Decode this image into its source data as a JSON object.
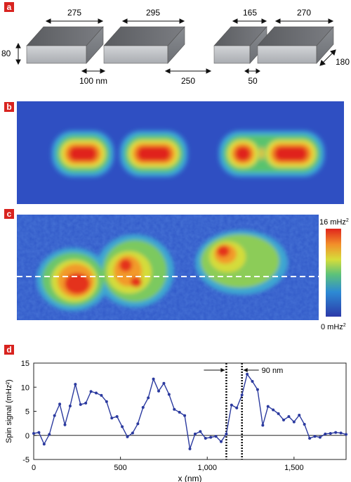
{
  "panels": {
    "a": {
      "label": "a"
    },
    "b": {
      "label": "b"
    },
    "c": {
      "label": "c"
    },
    "d": {
      "label": "d"
    }
  },
  "panel_a": {
    "block_widths": [
      "275",
      "295",
      "165",
      "270"
    ],
    "gaps": [
      "100 nm",
      "250",
      "50"
    ],
    "height": "80",
    "depth": "180"
  },
  "colorbar": {
    "max_label": "16 mHz",
    "min_label": "0 mHz",
    "superscript": "2"
  },
  "colors": {
    "panel_label_bg": "#d8231f",
    "map_background": "#2f4fc2",
    "line_color": "#2b3a9f"
  },
  "chart_data": {
    "type": "line",
    "xlabel": "x (nm)",
    "ylabel": "Spin signal (mHz²)",
    "xlim": [
      0,
      1800
    ],
    "ylim": [
      -5,
      15
    ],
    "xticks": [
      0,
      500,
      1000,
      1500
    ],
    "xtick_labels": [
      "0",
      "500",
      "1,000",
      "1,500"
    ],
    "yticks": [
      -5,
      0,
      5,
      10,
      15
    ],
    "ytick_labels": [
      "-5",
      "0",
      "5",
      "10",
      "15"
    ],
    "annotation": "90 nm",
    "vlines": [
      1110,
      1200
    ],
    "series": [
      {
        "x": [
          0,
          30,
          60,
          90,
          120,
          150,
          180,
          210,
          240,
          270,
          300,
          330,
          360,
          390,
          420,
          450,
          480,
          510,
          540,
          570,
          600,
          630,
          660,
          690,
          720,
          750,
          780,
          810,
          840,
          870,
          900,
          930,
          960,
          990,
          1020,
          1050,
          1080,
          1110,
          1140,
          1170,
          1200,
          1230,
          1260,
          1290,
          1320,
          1350,
          1380,
          1410,
          1440,
          1470,
          1500,
          1530,
          1560,
          1590,
          1620,
          1650,
          1680,
          1710,
          1740,
          1770,
          1800
        ],
        "y": [
          0.4,
          0.6,
          -1.8,
          0.2,
          4.1,
          6.5,
          2.2,
          6.1,
          10.6,
          6.4,
          6.7,
          9.1,
          8.8,
          8.3,
          7.0,
          3.6,
          3.9,
          1.8,
          -0.3,
          0.5,
          2.4,
          5.8,
          7.8,
          11.7,
          9.2,
          10.8,
          8.5,
          5.4,
          4.8,
          4.1,
          -2.8,
          0.3,
          0.8,
          -0.6,
          -0.4,
          -0.2,
          -1.3,
          0.3,
          6.3,
          5.7,
          8.4,
          12.7,
          11.2,
          9.5,
          2.1,
          6.0,
          5.3,
          4.5,
          3.2,
          3.9,
          2.8,
          4.2,
          2.3,
          -0.6,
          -0.2,
          -0.4,
          0.3,
          0.4,
          0.6,
          0.5,
          0.2
        ]
      }
    ]
  }
}
